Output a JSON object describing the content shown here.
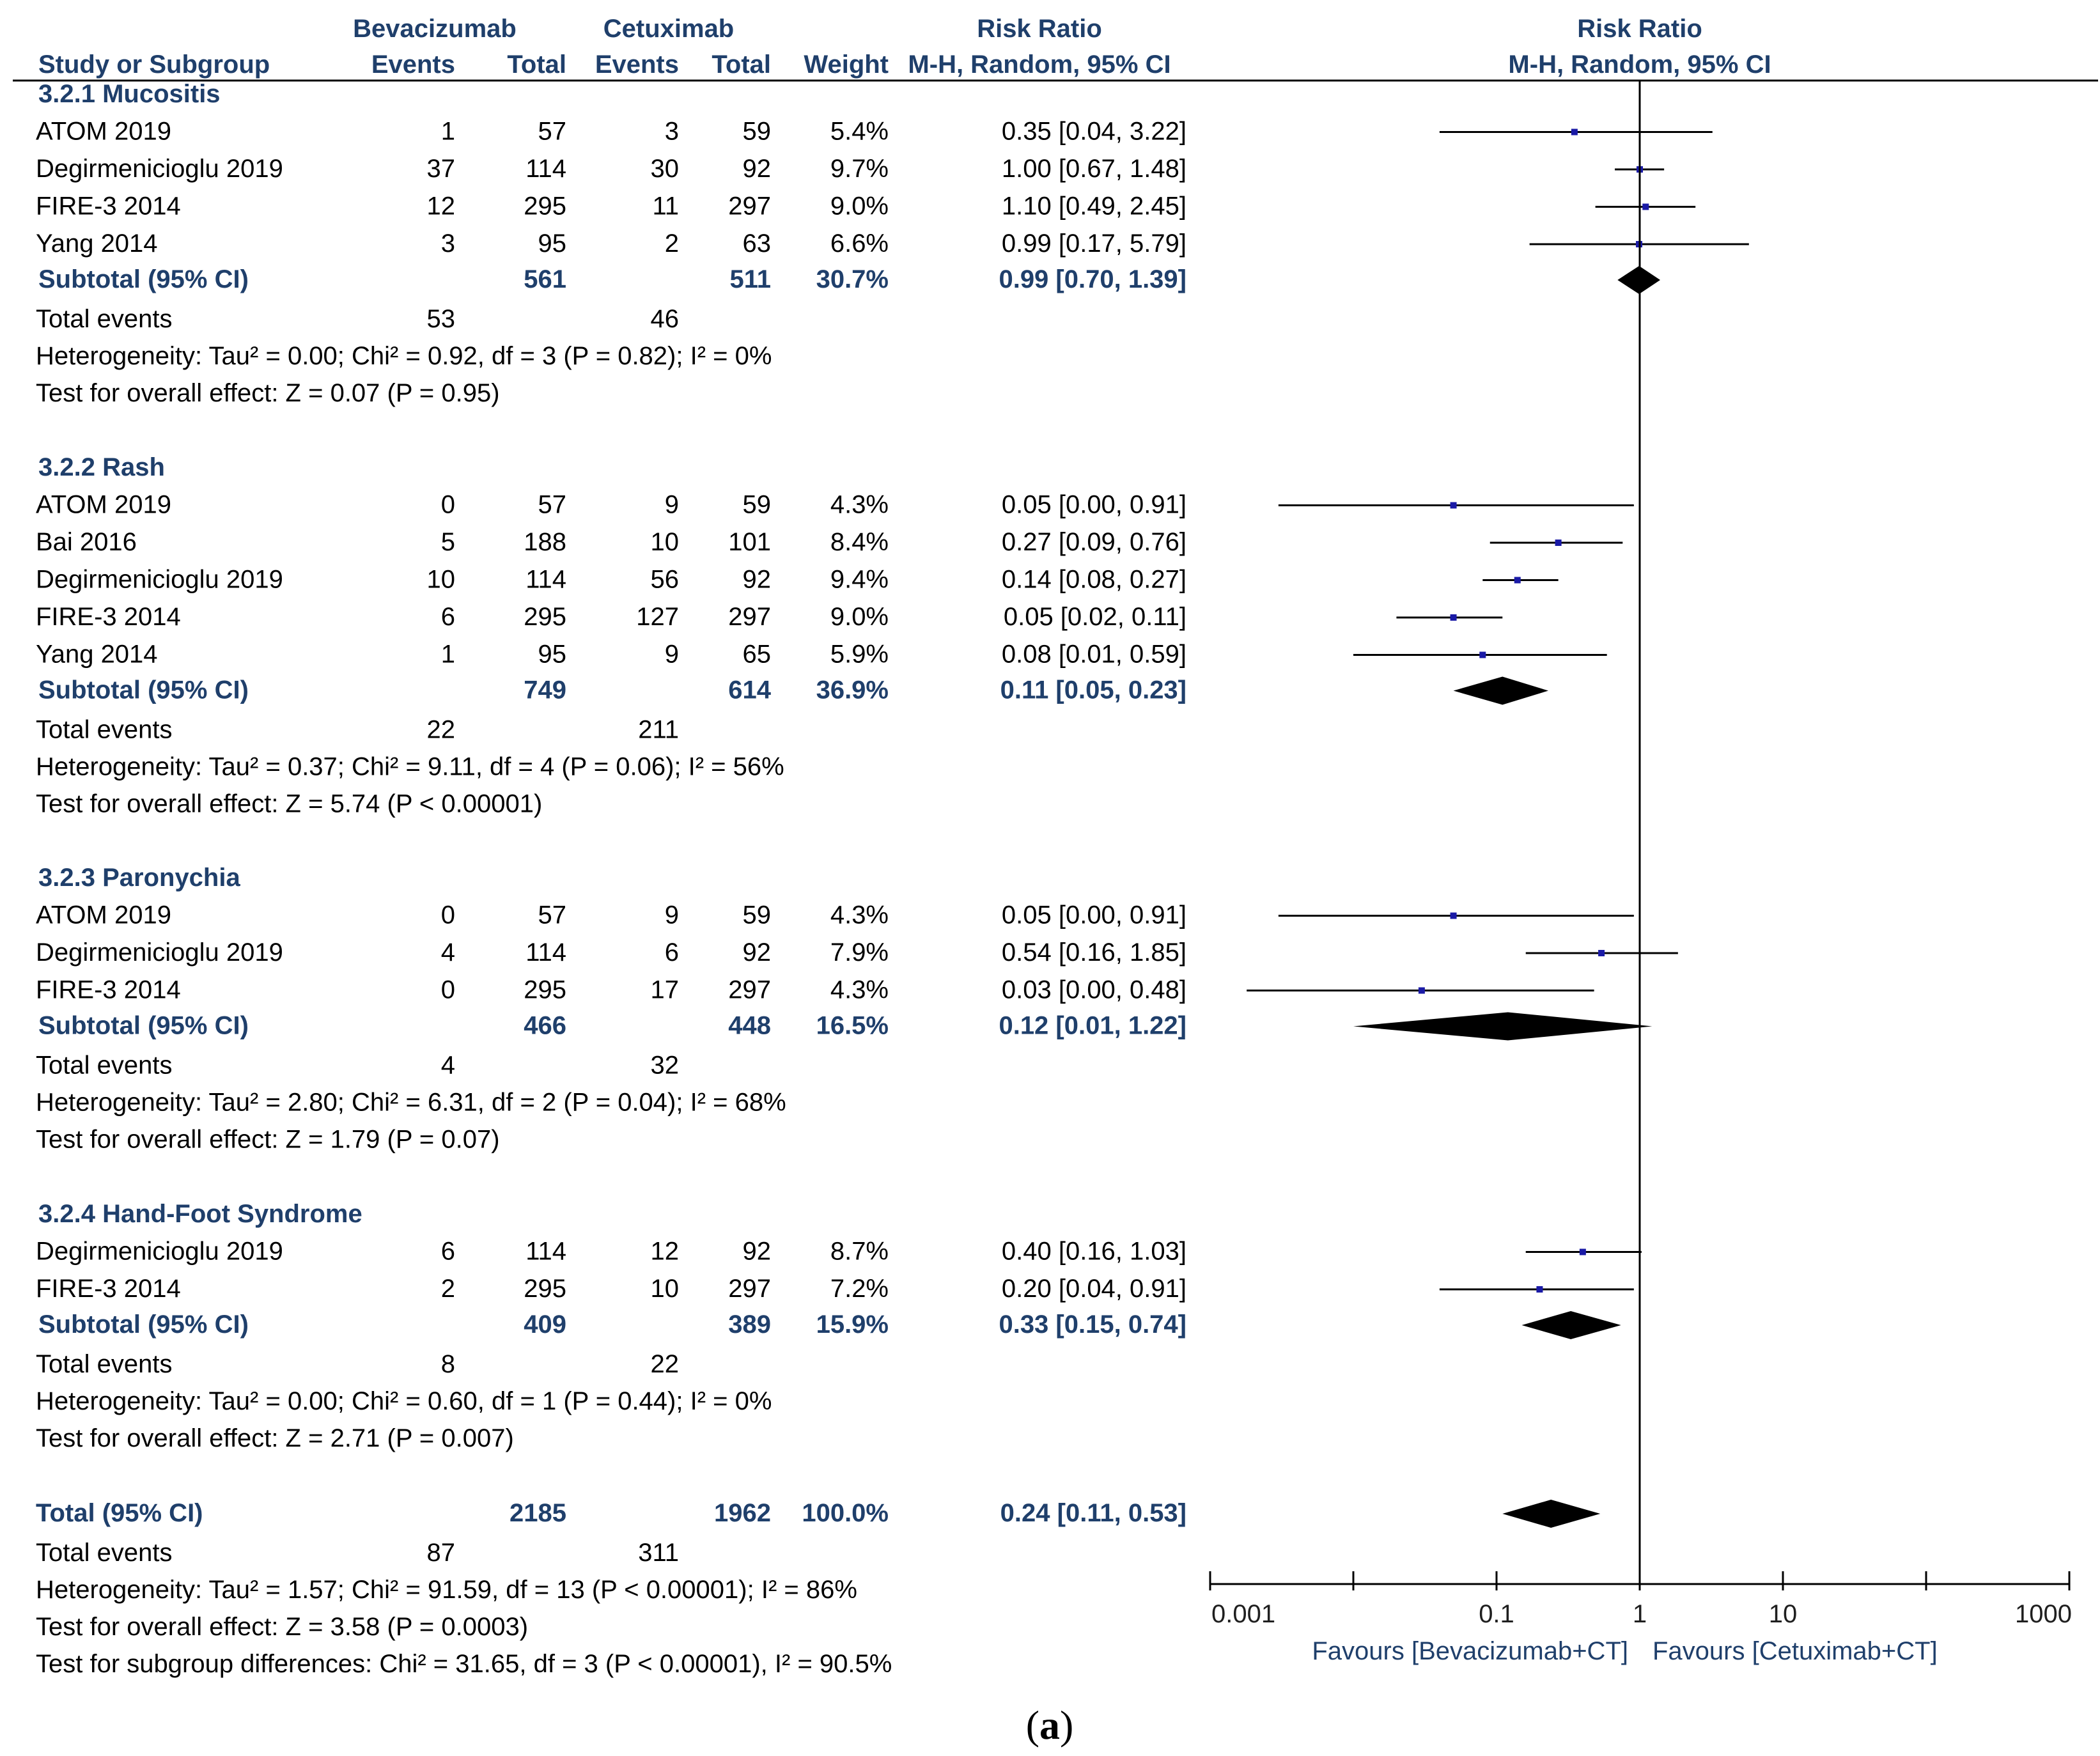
{
  "figure_label_open": "(",
  "figure_label": "a",
  "figure_label_close": ")",
  "header": {
    "group1": "Bevacizumab",
    "group2": "Cetuximab",
    "effect_title": "Risk Ratio",
    "plot_title": "Risk Ratio",
    "col_study": "Study or Subgroup",
    "col_events1": "Events",
    "col_total1": "Total",
    "col_events2": "Events",
    "col_total2": "Total",
    "col_weight": "Weight",
    "col_method": "M-H, Random, 95% CI",
    "plot_method": "M-H, Random, 95% CI"
  },
  "chart_data": {
    "type": "forest",
    "scale": "log",
    "axis_ticks": [
      {
        "value": 0.001,
        "label": "0.001"
      },
      {
        "value": 0.1,
        "label": "0.1"
      },
      {
        "value": 1,
        "label": "1"
      },
      {
        "value": 10,
        "label": "10"
      },
      {
        "value": 1000,
        "label": "1000"
      }
    ],
    "favours_left": "Favours [Bevacizumab+CT]",
    "favours_right": "Favours [Cetuximab+CT]",
    "subgroups": [
      {
        "title": "3.2.1 Mucositis",
        "studies": [
          {
            "name": "ATOM 2019",
            "e1": "1",
            "t1": "57",
            "e2": "3",
            "t2": "59",
            "weight": "5.4%",
            "ci": "0.35 [0.04, 3.22]",
            "rr": 0.35,
            "lo": 0.04,
            "hi": 3.22
          },
          {
            "name": "Degirmenicioglu 2019",
            "e1": "37",
            "t1": "114",
            "e2": "30",
            "t2": "92",
            "weight": "9.7%",
            "ci": "1.00 [0.67, 1.48]",
            "rr": 1.0,
            "lo": 0.67,
            "hi": 1.48
          },
          {
            "name": "FIRE-3 2014",
            "e1": "12",
            "t1": "295",
            "e2": "11",
            "t2": "297",
            "weight": "9.0%",
            "ci": "1.10 [0.49, 2.45]",
            "rr": 1.1,
            "lo": 0.49,
            "hi": 2.45
          },
          {
            "name": "Yang 2014",
            "e1": "3",
            "t1": "95",
            "e2": "2",
            "t2": "63",
            "weight": "6.6%",
            "ci": "0.99 [0.17, 5.79]",
            "rr": 0.99,
            "lo": 0.17,
            "hi": 5.79
          }
        ],
        "subtotal": {
          "label": "Subtotal (95% CI)",
          "t1": "561",
          "t2": "511",
          "weight": "30.7%",
          "ci": "0.99 [0.70, 1.39]",
          "rr": 0.99,
          "lo": 0.7,
          "hi": 1.39
        },
        "events": {
          "label": "Total events",
          "e1": "53",
          "e2": "46"
        },
        "heterogeneity": "Heterogeneity: Tau² = 0.00; Chi² = 0.92, df = 3 (P = 0.82); I² = 0%",
        "overall": "Test for overall effect: Z = 0.07 (P = 0.95)"
      },
      {
        "title": "3.2.2 Rash",
        "studies": [
          {
            "name": "ATOM 2019",
            "e1": "0",
            "t1": "57",
            "e2": "9",
            "t2": "59",
            "weight": "4.3%",
            "ci": "0.05 [0.00, 0.91]",
            "rr": 0.05,
            "lo": 0.003,
            "hi": 0.91
          },
          {
            "name": "Bai 2016",
            "e1": "5",
            "t1": "188",
            "e2": "10",
            "t2": "101",
            "weight": "8.4%",
            "ci": "0.27 [0.09, 0.76]",
            "rr": 0.27,
            "lo": 0.09,
            "hi": 0.76
          },
          {
            "name": "Degirmenicioglu 2019",
            "e1": "10",
            "t1": "114",
            "e2": "56",
            "t2": "92",
            "weight": "9.4%",
            "ci": "0.14 [0.08, 0.27]",
            "rr": 0.14,
            "lo": 0.08,
            "hi": 0.27
          },
          {
            "name": "FIRE-3 2014",
            "e1": "6",
            "t1": "295",
            "e2": "127",
            "t2": "297",
            "weight": "9.0%",
            "ci": "0.05 [0.02, 0.11]",
            "rr": 0.05,
            "lo": 0.02,
            "hi": 0.11
          },
          {
            "name": "Yang 2014",
            "e1": "1",
            "t1": "95",
            "e2": "9",
            "t2": "65",
            "weight": "5.9%",
            "ci": "0.08 [0.01, 0.59]",
            "rr": 0.08,
            "lo": 0.01,
            "hi": 0.59
          }
        ],
        "subtotal": {
          "label": "Subtotal (95% CI)",
          "t1": "749",
          "t2": "614",
          "weight": "36.9%",
          "ci": "0.11 [0.05, 0.23]",
          "rr": 0.11,
          "lo": 0.05,
          "hi": 0.23
        },
        "events": {
          "label": "Total events",
          "e1": "22",
          "e2": "211"
        },
        "heterogeneity": "Heterogeneity: Tau² = 0.37; Chi² = 9.11, df = 4 (P = 0.06); I² = 56%",
        "overall": "Test for overall effect: Z = 5.74 (P < 0.00001)"
      },
      {
        "title": "3.2.3 Paronychia",
        "studies": [
          {
            "name": "ATOM 2019",
            "e1": "0",
            "t1": "57",
            "e2": "9",
            "t2": "59",
            "weight": "4.3%",
            "ci": "0.05 [0.00, 0.91]",
            "rr": 0.05,
            "lo": 0.003,
            "hi": 0.91
          },
          {
            "name": "Degirmenicioglu 2019",
            "e1": "4",
            "t1": "114",
            "e2": "6",
            "t2": "92",
            "weight": "7.9%",
            "ci": "0.54 [0.16, 1.85]",
            "rr": 0.54,
            "lo": 0.16,
            "hi": 1.85
          },
          {
            "name": "FIRE-3 2014",
            "e1": "0",
            "t1": "295",
            "e2": "17",
            "t2": "297",
            "weight": "4.3%",
            "ci": "0.03 [0.00, 0.48]",
            "rr": 0.03,
            "lo": 0.0018,
            "hi": 0.48
          }
        ],
        "subtotal": {
          "label": "Subtotal (95% CI)",
          "t1": "466",
          "t2": "448",
          "weight": "16.5%",
          "ci": "0.12 [0.01, 1.22]",
          "rr": 0.12,
          "lo": 0.01,
          "hi": 1.22
        },
        "events": {
          "label": "Total events",
          "e1": "4",
          "e2": "32"
        },
        "heterogeneity": "Heterogeneity: Tau² = 2.80; Chi² = 6.31, df = 2 (P = 0.04); I² = 68%",
        "overall": "Test for overall effect: Z = 1.79 (P = 0.07)"
      },
      {
        "title": "3.2.4 Hand-Foot Syndrome",
        "studies": [
          {
            "name": "Degirmenicioglu 2019",
            "e1": "6",
            "t1": "114",
            "e2": "12",
            "t2": "92",
            "weight": "8.7%",
            "ci": "0.40 [0.16, 1.03]",
            "rr": 0.4,
            "lo": 0.16,
            "hi": 1.03
          },
          {
            "name": "FIRE-3 2014",
            "e1": "2",
            "t1": "295",
            "e2": "10",
            "t2": "297",
            "weight": "7.2%",
            "ci": "0.20 [0.04, 0.91]",
            "rr": 0.2,
            "lo": 0.04,
            "hi": 0.91
          }
        ],
        "subtotal": {
          "label": "Subtotal (95% CI)",
          "t1": "409",
          "t2": "389",
          "weight": "15.9%",
          "ci": "0.33 [0.15, 0.74]",
          "rr": 0.33,
          "lo": 0.15,
          "hi": 0.74
        },
        "events": {
          "label": "Total events",
          "e1": "8",
          "e2": "22"
        },
        "heterogeneity": "Heterogeneity: Tau² = 0.00; Chi² = 0.60, df = 1 (P = 0.44); I² = 0%",
        "overall": "Test for overall effect: Z = 2.71 (P = 0.007)"
      }
    ],
    "total": {
      "label": "Total (95% CI)",
      "t1": "2185",
      "t2": "1962",
      "weight": "100.0%",
      "ci": "0.24 [0.11, 0.53]",
      "rr": 0.24,
      "lo": 0.11,
      "hi": 0.53,
      "events": {
        "label": "Total events",
        "e1": "87",
        "e2": "311"
      },
      "heterogeneity": "Heterogeneity: Tau² = 1.57; Chi² = 91.59, df = 13 (P < 0.00001); I² = 86%",
      "overall": "Test for overall effect: Z = 3.58 (P = 0.0003)",
      "subgroup_diff": "Test for subgroup differences: Chi² = 31.65, df = 3 (P < 0.00001), I² = 90.5%"
    }
  },
  "colors": {
    "point": "#1a1aa6",
    "diamond": "#000000",
    "line": "#000000",
    "header": "#1f3f6b"
  }
}
